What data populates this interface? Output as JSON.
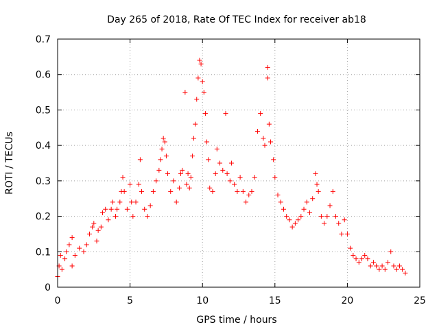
{
  "chart_data": {
    "type": "scatter",
    "title": "Day 265 of 2018, Rate Of TEC Index for receiver ab18",
    "xlabel": "GPS time / hours",
    "ylabel": "ROTI / TECUs",
    "xlim": [
      0,
      25
    ],
    "ylim": [
      0,
      0.7
    ],
    "xticks": [
      "0",
      "5",
      "10",
      "15",
      "20",
      "25"
    ],
    "yticks": [
      "0",
      "0.1",
      "0.2",
      "0.3",
      "0.4",
      "0.5",
      "0.6",
      "0.7"
    ],
    "grid": true,
    "marker": "plus",
    "color": "#ff0000",
    "series": [
      {
        "values_note_removed": "",
        "points": [
          [
            0.0,
            0.03
          ],
          [
            0.1,
            0.06
          ],
          [
            0.2,
            0.09
          ],
          [
            0.3,
            0.05
          ],
          [
            0.5,
            0.08
          ],
          [
            0.6,
            0.1
          ],
          [
            0.8,
            0.12
          ],
          [
            1.0,
            0.14
          ],
          [
            1.0,
            0.06
          ],
          [
            1.2,
            0.09
          ],
          [
            1.5,
            0.11
          ],
          [
            1.8,
            0.1
          ],
          [
            2.0,
            0.12
          ],
          [
            2.2,
            0.15
          ],
          [
            2.4,
            0.17
          ],
          [
            2.5,
            0.18
          ],
          [
            2.7,
            0.13
          ],
          [
            2.8,
            0.16
          ],
          [
            3.0,
            0.17
          ],
          [
            3.1,
            0.21
          ],
          [
            3.3,
            0.22
          ],
          [
            3.5,
            0.19
          ],
          [
            3.7,
            0.22
          ],
          [
            3.8,
            0.24
          ],
          [
            4.0,
            0.2
          ],
          [
            4.1,
            0.22
          ],
          [
            4.3,
            0.24
          ],
          [
            4.4,
            0.27
          ],
          [
            4.5,
            0.31
          ],
          [
            4.6,
            0.27
          ],
          [
            4.8,
            0.22
          ],
          [
            5.0,
            0.29
          ],
          [
            5.1,
            0.24
          ],
          [
            5.2,
            0.2
          ],
          [
            5.4,
            0.24
          ],
          [
            5.6,
            0.29
          ],
          [
            5.7,
            0.36
          ],
          [
            5.8,
            0.27
          ],
          [
            6.0,
            0.22
          ],
          [
            6.2,
            0.2
          ],
          [
            6.4,
            0.23
          ],
          [
            6.6,
            0.27
          ],
          [
            6.8,
            0.3
          ],
          [
            7.0,
            0.33
          ],
          [
            7.1,
            0.36
          ],
          [
            7.2,
            0.39
          ],
          [
            7.3,
            0.42
          ],
          [
            7.4,
            0.41
          ],
          [
            7.5,
            0.37
          ],
          [
            7.6,
            0.32
          ],
          [
            7.8,
            0.27
          ],
          [
            8.0,
            0.3
          ],
          [
            8.2,
            0.24
          ],
          [
            8.4,
            0.28
          ],
          [
            8.5,
            0.32
          ],
          [
            8.6,
            0.33
          ],
          [
            8.8,
            0.55
          ],
          [
            8.9,
            0.29
          ],
          [
            9.0,
            0.32
          ],
          [
            9.1,
            0.28
          ],
          [
            9.2,
            0.31
          ],
          [
            9.3,
            0.37
          ],
          [
            9.4,
            0.42
          ],
          [
            9.5,
            0.46
          ],
          [
            9.6,
            0.53
          ],
          [
            9.7,
            0.59
          ],
          [
            9.8,
            0.64
          ],
          [
            9.9,
            0.63
          ],
          [
            10.0,
            0.58
          ],
          [
            10.1,
            0.55
          ],
          [
            10.2,
            0.49
          ],
          [
            10.3,
            0.41
          ],
          [
            10.4,
            0.36
          ],
          [
            10.5,
            0.28
          ],
          [
            10.7,
            0.27
          ],
          [
            10.9,
            0.32
          ],
          [
            11.0,
            0.39
          ],
          [
            11.2,
            0.35
          ],
          [
            11.4,
            0.33
          ],
          [
            11.6,
            0.49
          ],
          [
            11.7,
            0.32
          ],
          [
            11.9,
            0.3
          ],
          [
            12.0,
            0.35
          ],
          [
            12.2,
            0.29
          ],
          [
            12.4,
            0.27
          ],
          [
            12.6,
            0.31
          ],
          [
            12.8,
            0.27
          ],
          [
            13.0,
            0.24
          ],
          [
            13.2,
            0.26
          ],
          [
            13.4,
            0.27
          ],
          [
            13.6,
            0.31
          ],
          [
            13.8,
            0.44
          ],
          [
            14.0,
            0.49
          ],
          [
            14.2,
            0.42
          ],
          [
            14.3,
            0.4
          ],
          [
            14.5,
            0.62
          ],
          [
            14.5,
            0.59
          ],
          [
            14.6,
            0.46
          ],
          [
            14.7,
            0.41
          ],
          [
            14.9,
            0.36
          ],
          [
            15.0,
            0.31
          ],
          [
            15.2,
            0.26
          ],
          [
            15.4,
            0.24
          ],
          [
            15.6,
            0.22
          ],
          [
            15.8,
            0.2
          ],
          [
            16.0,
            0.19
          ],
          [
            16.2,
            0.17
          ],
          [
            16.4,
            0.18
          ],
          [
            16.6,
            0.19
          ],
          [
            16.8,
            0.2
          ],
          [
            17.0,
            0.22
          ],
          [
            17.2,
            0.24
          ],
          [
            17.4,
            0.21
          ],
          [
            17.6,
            0.25
          ],
          [
            17.8,
            0.32
          ],
          [
            17.9,
            0.29
          ],
          [
            18.0,
            0.27
          ],
          [
            18.2,
            0.2
          ],
          [
            18.4,
            0.18
          ],
          [
            18.6,
            0.2
          ],
          [
            18.8,
            0.23
          ],
          [
            19.0,
            0.27
          ],
          [
            19.2,
            0.2
          ],
          [
            19.4,
            0.18
          ],
          [
            19.6,
            0.15
          ],
          [
            19.8,
            0.19
          ],
          [
            20.0,
            0.15
          ],
          [
            20.2,
            0.11
          ],
          [
            20.4,
            0.09
          ],
          [
            20.6,
            0.08
          ],
          [
            20.8,
            0.07
          ],
          [
            21.0,
            0.08
          ],
          [
            21.2,
            0.09
          ],
          [
            21.4,
            0.08
          ],
          [
            21.6,
            0.06
          ],
          [
            21.8,
            0.07
          ],
          [
            22.0,
            0.06
          ],
          [
            22.2,
            0.05
          ],
          [
            22.4,
            0.06
          ],
          [
            22.6,
            0.05
          ],
          [
            22.8,
            0.07
          ],
          [
            23.0,
            0.1
          ],
          [
            23.2,
            0.06
          ],
          [
            23.4,
            0.05
          ],
          [
            23.6,
            0.06
          ],
          [
            23.8,
            0.05
          ],
          [
            24.0,
            0.04
          ]
        ]
      }
    ]
  }
}
